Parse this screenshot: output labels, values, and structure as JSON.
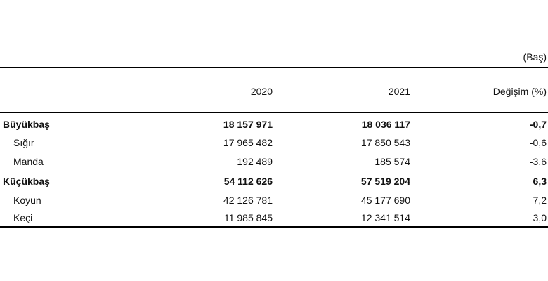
{
  "table": {
    "unit": "(Baş)",
    "headers": {
      "col_2020": "2020",
      "col_2021": "2021",
      "col_change": "Değişim (%)"
    },
    "rows": [
      {
        "name": "Büyükbaş",
        "v2020": "18 157 971",
        "v2021": "18 036 117",
        "change": "-0,7"
      },
      {
        "name": "Sığır",
        "v2020": "17 965 482",
        "v2021": "17 850 543",
        "change": "-0,6"
      },
      {
        "name": "Manda",
        "v2020": "192 489",
        "v2021": "185 574",
        "change": "-3,6"
      },
      {
        "name": "Küçükbaş",
        "v2020": "54 112 626",
        "v2021": "57 519 204",
        "change": "6,3"
      },
      {
        "name": "Koyun",
        "v2020": "42 126 781",
        "v2021": "45 177 690",
        "change": "7,2"
      },
      {
        "name": "Keçi",
        "v2020": "11 985 845",
        "v2021": "12 341 514",
        "change": "3,0"
      }
    ]
  }
}
